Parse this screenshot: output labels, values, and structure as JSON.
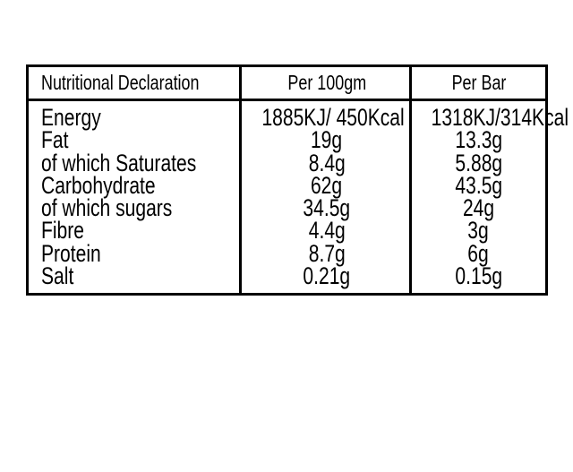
{
  "table": {
    "headers": [
      "Nutritional Declaration",
      "Per 100gm",
      "Per Bar"
    ],
    "rows": [
      {
        "label": "Energy",
        "per100": "1885KJ/ 450Kcal",
        "perBar": "1318KJ/314Kcal"
      },
      {
        "label": "Fat",
        "per100": "19g",
        "perBar": "13.3g"
      },
      {
        "label": "of which Saturates",
        "per100": "8.4g",
        "perBar": "5.88g"
      },
      {
        "label": "Carbohydrate",
        "per100": "62g",
        "perBar": "43.5g"
      },
      {
        "label": "of which sugars",
        "per100": "34.5g",
        "perBar": "24g"
      },
      {
        "label": "Fibre",
        "per100": "4.4g",
        "perBar": "3g"
      },
      {
        "label": "Protein",
        "per100": "8.7g",
        "perBar": "6g"
      },
      {
        "label": "Salt",
        "per100": "0.21g",
        "perBar": "0.15g"
      }
    ]
  }
}
